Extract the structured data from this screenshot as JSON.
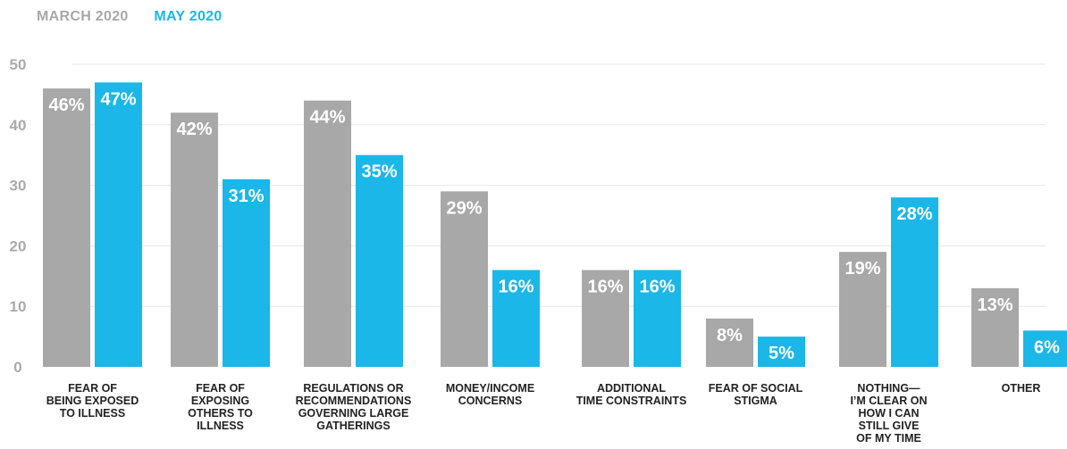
{
  "legend": {
    "march": {
      "label": "MARCH 2020",
      "color": "#a8a8a8"
    },
    "may": {
      "label": "MAY 2020",
      "color": "#1ab7e8"
    }
  },
  "chart_data": {
    "type": "bar",
    "ylim": [
      0,
      50
    ],
    "yticks": [
      0,
      10,
      20,
      30,
      40,
      50
    ],
    "grid": true,
    "legend_position": "top-left",
    "categories": [
      [
        "FEAR OF",
        "BEING EXPOSED",
        "TO ILLNESS"
      ],
      [
        "FEAR OF",
        "EXPOSING",
        "OTHERS TO",
        "ILLNESS"
      ],
      [
        "REGULATIONS OR",
        "RECOMMENDATIONS",
        "GOVERNING LARGE",
        "GATHERINGS"
      ],
      [
        "MONEY/INCOME",
        "CONCERNS"
      ],
      [
        "ADDITIONAL",
        "TIME CONSTRAINTS"
      ],
      [
        "FEAR OF SOCIAL",
        "STIGMA"
      ],
      [
        "NOTHING—",
        "I’M CLEAR ON",
        "HOW I CAN",
        "STILL GIVE",
        "OF MY TIME"
      ],
      [
        "OTHER"
      ]
    ],
    "series": [
      {
        "name": "MARCH 2020",
        "color": "#a8a8a8",
        "values": [
          46,
          42,
          44,
          29,
          16,
          8,
          19,
          13
        ],
        "labels": [
          "46%",
          "42%",
          "44%",
          "29%",
          "16%",
          "8%",
          "19%",
          "13%"
        ]
      },
      {
        "name": "MAY 2020",
        "color": "#1ab7e8",
        "values": [
          47,
          31,
          35,
          16,
          16,
          5,
          28,
          6
        ],
        "labels": [
          "47%",
          "31%",
          "35%",
          "16%",
          "16%",
          "5%",
          "28%",
          "6%"
        ]
      }
    ]
  }
}
